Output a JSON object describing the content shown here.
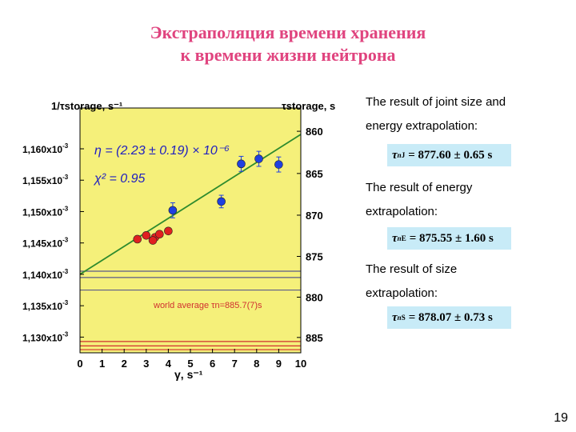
{
  "slide": {
    "title_line1": "Экстраполяция времени хранения",
    "title_line2": "к времени жизни нейтрона",
    "result1_text_a": "The result of joint size and",
    "result1_text_b": "energy extrapolation:",
    "result1_formula": "= 877.60 ± 0.65 s",
    "result1_sup": "J",
    "result2_text_a": "The result of energy",
    "result2_text_b": "extrapolation:",
    "result2_formula": "= 875.55 ± 1.60 s",
    "result2_sup": "E",
    "result3_text_a": "The result of size",
    "result3_text_b": "extrapolation:",
    "result3_formula": "= 878.07 ± 0.73 s",
    "result3_sup": "S",
    "page_number": "19"
  },
  "chart_data": {
    "type": "scatter",
    "background_color": "#f5f07a",
    "xlabel": "γ, s⁻¹",
    "ylabel_left": "1/τstorage, s⁻¹",
    "ylabel_right": "τstorage, s",
    "xlim": [
      0,
      10
    ],
    "x_ticks": [
      "0",
      "1",
      "2",
      "3",
      "4",
      "5",
      "6",
      "7",
      "8",
      "9",
      "10"
    ],
    "ylim_left": [
      0.0011275,
      0.0011665
    ],
    "y_ticks_left": [
      {
        "value": 0.00116,
        "base": "1,160x10",
        "exp": "-3"
      },
      {
        "value": 0.001155,
        "base": "1,155x10",
        "exp": "-3"
      },
      {
        "value": 0.00115,
        "base": "1,150x10",
        "exp": "-3"
      },
      {
        "value": 0.001145,
        "base": "1,145x10",
        "exp": "-3"
      },
      {
        "value": 0.00114,
        "base": "1,140x10",
        "exp": "-3"
      },
      {
        "value": 0.001135,
        "base": "1,135x10",
        "exp": "-3"
      },
      {
        "value": 0.00113,
        "base": "1,130x10",
        "exp": "-3"
      }
    ],
    "y_ticks_right": [
      "860",
      "865",
      "870",
      "875",
      "880",
      "885"
    ],
    "annotation_eta": "η = (2.23 ± 0.19) × 10⁻⁶",
    "annotation_chi": "χ² = 0.95",
    "world_average_label": "world average τn=885.7(7)s",
    "fit_line": {
      "x": [
        0,
        10
      ],
      "y": [
        0.00114,
        0.0011623
      ],
      "color": "#2e8b2e"
    },
    "series": [
      {
        "color": "#e02020",
        "points": [
          {
            "x": 2.6,
            "y": 0.0011456
          },
          {
            "x": 3.0,
            "y": 0.0011462
          },
          {
            "x": 3.4,
            "y": 0.0011459
          },
          {
            "x": 3.6,
            "y": 0.0011464
          },
          {
            "x": 4.0,
            "y": 0.0011469
          },
          {
            "x": 3.3,
            "y": 0.0011454
          }
        ]
      },
      {
        "color": "#2040e0",
        "points": [
          {
            "x": 4.2,
            "y": 0.0011502,
            "err": 1.2e-06
          },
          {
            "x": 6.4,
            "y": 0.0011516,
            "err": 1e-06
          },
          {
            "x": 7.3,
            "y": 0.0011576,
            "err": 1.2e-06
          },
          {
            "x": 8.1,
            "y": 0.0011584,
            "err": 1.2e-06
          },
          {
            "x": 9.0,
            "y": 0.0011575,
            "err": 1.2e-06
          }
        ]
      }
    ],
    "horizontal_lines": [
      {
        "y": 0.0011405,
        "color": "#5a5a8a"
      },
      {
        "y": 0.0011395,
        "color": "#5a5a8a"
      },
      {
        "y": 0.0011375,
        "color": "#5a5a8a"
      },
      {
        "y": 0.0011286,
        "color": "#d03030"
      },
      {
        "y": 0.0011293,
        "color": "#d03030"
      },
      {
        "y": 0.001128,
        "color": "#d03030"
      }
    ]
  }
}
